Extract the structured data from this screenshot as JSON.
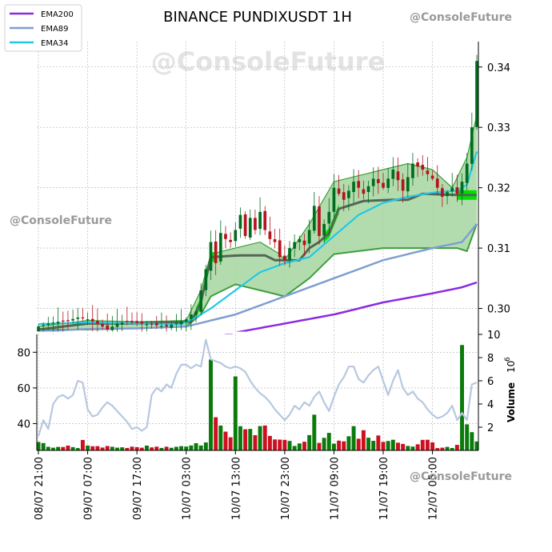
{
  "watermarks": {
    "center": "@ConsoleFuture",
    "top_right": "@ConsoleFuture",
    "left": "@ConsoleFuture",
    "bottom_right": "@ConsoleFuture"
  },
  "colors": {
    "up": "#006e1e",
    "down": "#b4141e",
    "ema200": "#8a2be2",
    "ema89": "#7f9fd0",
    "ema34": "#22c8e5",
    "cloud_fill": "#a6d6a0",
    "cloud_edge": "#3d9e3d",
    "bright_green": "#00e000",
    "vol_up": "#0a7a0a",
    "vol_down": "#cc1020",
    "rsi_line": "#b8c8e0"
  },
  "chart_data": {
    "type": "candlestick",
    "title": "BINANCE PUNDIXUSDT 1H",
    "legend": {
      "placement": "top-left",
      "entries": [
        "EMA200",
        "EMA89",
        "EMA34"
      ]
    },
    "x_tick_labels": [
      "08/07 21:00",
      "09/07 07:00",
      "09/07 17:00",
      "10/07 03:00",
      "10/07 13:00",
      "10/07 23:00",
      "11/07 09:00",
      "11/07 19:00",
      "12/07 05:00"
    ],
    "x_tick_index": [
      0,
      10,
      20,
      30,
      40,
      50,
      60,
      70,
      80
    ],
    "num_bars": 90,
    "price_axis": {
      "ticks": [
        0.3,
        0.31,
        0.32,
        0.33,
        0.34
      ],
      "range": [
        0.2957,
        0.3458
      ],
      "side": "right",
      "grid": true
    },
    "volume_axis": {
      "label": "Volume",
      "exponent_label": "10",
      "exponent": "6",
      "ticks": [
        2,
        4,
        6,
        8,
        10
      ],
      "range": [
        0,
        10
      ],
      "side": "right"
    },
    "oscillator_axis": {
      "ticks": [
        40,
        60,
        80
      ],
      "range": [
        25,
        90
      ],
      "side": "left"
    },
    "price_anchors": {
      "close": [
        [
          0,
          0.297
        ],
        [
          2,
          0.2975
        ],
        [
          4,
          0.2978
        ],
        [
          6,
          0.298
        ],
        [
          8,
          0.2985
        ],
        [
          10,
          0.2982
        ],
        [
          12,
          0.2975
        ],
        [
          14,
          0.2965
        ],
        [
          16,
          0.2975
        ],
        [
          18,
          0.2978
        ],
        [
          20,
          0.2976
        ],
        [
          22,
          0.2974
        ],
        [
          24,
          0.2972
        ],
        [
          26,
          0.297
        ],
        [
          28,
          0.2976
        ],
        [
          30,
          0.2982
        ],
        [
          31,
          0.299
        ],
        [
          32,
          0.2995
        ],
        [
          33,
          0.303
        ],
        [
          34,
          0.3065
        ],
        [
          35,
          0.311
        ],
        [
          36,
          0.3075
        ],
        [
          37,
          0.3125
        ],
        [
          38,
          0.3115
        ],
        [
          39,
          0.311
        ],
        [
          40,
          0.313
        ],
        [
          41,
          0.3155
        ],
        [
          42,
          0.312
        ],
        [
          43,
          0.315
        ],
        [
          44,
          0.313
        ],
        [
          45,
          0.316
        ],
        [
          46,
          0.313
        ],
        [
          47,
          0.3115
        ],
        [
          48,
          0.311
        ],
        [
          49,
          0.3085
        ],
        [
          50,
          0.308
        ],
        [
          51,
          0.31
        ],
        [
          52,
          0.311
        ],
        [
          53,
          0.3115
        ],
        [
          54,
          0.3105
        ],
        [
          55,
          0.313
        ],
        [
          56,
          0.317
        ],
        [
          57,
          0.312
        ],
        [
          58,
          0.314
        ],
        [
          59,
          0.316
        ],
        [
          60,
          0.32
        ],
        [
          62,
          0.318
        ],
        [
          64,
          0.321
        ],
        [
          66,
          0.319
        ],
        [
          68,
          0.3215
        ],
        [
          70,
          0.32
        ],
        [
          72,
          0.323
        ],
        [
          74,
          0.3195
        ],
        [
          76,
          0.324
        ],
        [
          78,
          0.323
        ],
        [
          80,
          0.3215
        ],
        [
          82,
          0.3185
        ],
        [
          84,
          0.32
        ],
        [
          85,
          0.319
        ],
        [
          86,
          0.321
        ],
        [
          87,
          0.324
        ],
        [
          88,
          0.33
        ],
        [
          89,
          0.341
        ]
      ],
      "ema34": [
        [
          0,
          0.2974
        ],
        [
          10,
          0.2977
        ],
        [
          20,
          0.2975
        ],
        [
          29,
          0.2974
        ],
        [
          32,
          0.2985
        ],
        [
          35,
          0.3
        ],
        [
          40,
          0.303
        ],
        [
          45,
          0.306
        ],
        [
          50,
          0.3075
        ],
        [
          55,
          0.3085
        ],
        [
          60,
          0.312
        ],
        [
          65,
          0.3155
        ],
        [
          70,
          0.3175
        ],
        [
          75,
          0.3185
        ],
        [
          80,
          0.3192
        ],
        [
          85,
          0.3195
        ],
        [
          87,
          0.3205
        ],
        [
          89,
          0.326
        ]
      ],
      "ema89": [
        [
          0,
          0.2962
        ],
        [
          10,
          0.2966
        ],
        [
          20,
          0.2967
        ],
        [
          30,
          0.297
        ],
        [
          40,
          0.299
        ],
        [
          50,
          0.302
        ],
        [
          60,
          0.305
        ],
        [
          70,
          0.308
        ],
        [
          80,
          0.31
        ],
        [
          86,
          0.311
        ],
        [
          89,
          0.314
        ]
      ],
      "ema200": [
        [
          35,
          0.295
        ],
        [
          40,
          0.296
        ],
        [
          50,
          0.2975
        ],
        [
          60,
          0.299
        ],
        [
          70,
          0.301
        ],
        [
          80,
          0.3025
        ],
        [
          86,
          0.3035
        ],
        [
          89,
          0.3043
        ]
      ],
      "cloud_upper": [
        [
          0,
          0.297
        ],
        [
          10,
          0.298
        ],
        [
          20,
          0.2978
        ],
        [
          30,
          0.298
        ],
        [
          33,
          0.303
        ],
        [
          35,
          0.309
        ],
        [
          40,
          0.31
        ],
        [
          45,
          0.311
        ],
        [
          49,
          0.309
        ],
        [
          50,
          0.308
        ],
        [
          55,
          0.314
        ],
        [
          60,
          0.321
        ],
        [
          65,
          0.322
        ],
        [
          70,
          0.323
        ],
        [
          75,
          0.324
        ],
        [
          80,
          0.323
        ],
        [
          84,
          0.32
        ],
        [
          87,
          0.325
        ],
        [
          89,
          0.332
        ]
      ],
      "cloud_lower": [
        [
          0,
          0.2965
        ],
        [
          10,
          0.2965
        ],
        [
          20,
          0.2967
        ],
        [
          30,
          0.297
        ],
        [
          33,
          0.299
        ],
        [
          35,
          0.302
        ],
        [
          40,
          0.304
        ],
        [
          45,
          0.303
        ],
        [
          50,
          0.302
        ],
        [
          55,
          0.305
        ],
        [
          60,
          0.309
        ],
        [
          65,
          0.3095
        ],
        [
          70,
          0.31
        ],
        [
          75,
          0.31
        ],
        [
          80,
          0.31
        ],
        [
          85,
          0.31
        ],
        [
          87,
          0.3095
        ],
        [
          89,
          0.314
        ]
      ],
      "cloud_mid": [
        [
          0,
          0.2965
        ],
        [
          10,
          0.2975
        ],
        [
          20,
          0.2975
        ],
        [
          31,
          0.2978
        ],
        [
          33,
          0.301
        ],
        [
          35,
          0.3085
        ],
        [
          41,
          0.3088
        ],
        [
          46,
          0.3088
        ],
        [
          48,
          0.308
        ],
        [
          53,
          0.308
        ],
        [
          55,
          0.31
        ],
        [
          57,
          0.311
        ],
        [
          59,
          0.3125
        ],
        [
          61,
          0.3165
        ],
        [
          66,
          0.3178
        ],
        [
          72,
          0.318
        ],
        [
          75,
          0.318
        ],
        [
          78,
          0.319
        ],
        [
          85,
          0.3188
        ],
        [
          89,
          0.3188
        ]
      ]
    },
    "volume_anchors": [
      [
        0,
        0.8
      ],
      [
        2,
        0.3
      ],
      [
        4,
        0.4
      ],
      [
        6,
        0.3
      ],
      [
        8,
        0.3
      ],
      [
        9,
        0.9
      ],
      [
        10,
        0.4
      ],
      [
        11,
        0.3
      ],
      [
        14,
        0.4
      ],
      [
        16,
        0.3
      ],
      [
        20,
        0.2
      ],
      [
        22,
        0.3
      ],
      [
        26,
        0.2
      ],
      [
        28,
        0.3
      ],
      [
        30,
        0.4
      ],
      [
        34,
        0.6
      ],
      [
        35,
        7.8
      ],
      [
        36,
        2.8
      ],
      [
        37,
        2.2
      ],
      [
        38,
        1.6
      ],
      [
        39,
        1.2
      ],
      [
        40,
        6.3
      ],
      [
        41,
        2.1
      ],
      [
        42,
        1.8
      ],
      [
        43,
        1.9
      ],
      [
        44,
        1.4
      ],
      [
        45,
        2.0
      ],
      [
        46,
        2.1
      ],
      [
        47,
        1.2
      ],
      [
        48,
        1.0
      ],
      [
        50,
        1.0
      ],
      [
        52,
        0.5
      ],
      [
        54,
        0.8
      ],
      [
        55,
        1.3
      ],
      [
        56,
        3.2
      ],
      [
        57,
        0.6
      ],
      [
        58,
        1.0
      ],
      [
        59,
        1.4
      ],
      [
        60,
        0.6
      ],
      [
        62,
        0.9
      ],
      [
        63,
        1.2
      ],
      [
        64,
        2.0
      ],
      [
        65,
        1.0
      ],
      [
        66,
        1.8
      ],
      [
        67,
        1.0
      ],
      [
        68,
        0.9
      ],
      [
        69,
        1.2
      ],
      [
        70,
        0.7
      ],
      [
        71,
        0.9
      ],
      [
        72,
        0.9
      ],
      [
        73,
        0.6
      ],
      [
        74,
        0.5
      ],
      [
        76,
        0.4
      ],
      [
        77,
        0.6
      ],
      [
        78,
        0.9
      ],
      [
        79,
        1.0
      ],
      [
        80,
        0.6
      ],
      [
        81,
        0.3
      ],
      [
        84,
        0.3
      ],
      [
        85,
        0.4
      ],
      [
        86,
        9.0
      ],
      [
        87,
        2.3
      ],
      [
        88,
        1.5
      ],
      [
        89,
        0.8
      ]
    ],
    "oscillator_anchors": [
      [
        0,
        33
      ],
      [
        1,
        42
      ],
      [
        2,
        37
      ],
      [
        3,
        51
      ],
      [
        4,
        55
      ],
      [
        5,
        56
      ],
      [
        6,
        54
      ],
      [
        7,
        56
      ],
      [
        8,
        64
      ],
      [
        9,
        63
      ],
      [
        10,
        48
      ],
      [
        11,
        44
      ],
      [
        12,
        45
      ],
      [
        13,
        49
      ],
      [
        14,
        52
      ],
      [
        15,
        50
      ],
      [
        16,
        47
      ],
      [
        17,
        44
      ],
      [
        18,
        41
      ],
      [
        19,
        37
      ],
      [
        20,
        38
      ],
      [
        21,
        36
      ],
      [
        22,
        38
      ],
      [
        23,
        56
      ],
      [
        24,
        60
      ],
      [
        25,
        58
      ],
      [
        26,
        62
      ],
      [
        27,
        60
      ],
      [
        28,
        68
      ],
      [
        29,
        73
      ],
      [
        30,
        73
      ],
      [
        31,
        71
      ],
      [
        32,
        73
      ],
      [
        33,
        72
      ],
      [
        34,
        87
      ],
      [
        35,
        76
      ],
      [
        36,
        75
      ],
      [
        37,
        74
      ],
      [
        38,
        72
      ],
      [
        39,
        71
      ],
      [
        40,
        72
      ],
      [
        41,
        71
      ],
      [
        42,
        69
      ],
      [
        43,
        64
      ],
      [
        44,
        60
      ],
      [
        45,
        57
      ],
      [
        46,
        55
      ],
      [
        47,
        52
      ],
      [
        48,
        48
      ],
      [
        49,
        45
      ],
      [
        50,
        42
      ],
      [
        51,
        45
      ],
      [
        52,
        50
      ],
      [
        53,
        48
      ],
      [
        54,
        52
      ],
      [
        55,
        50
      ],
      [
        56,
        55
      ],
      [
        57,
        58
      ],
      [
        58,
        52
      ],
      [
        59,
        47
      ],
      [
        60,
        55
      ],
      [
        61,
        62
      ],
      [
        62,
        66
      ],
      [
        63,
        72
      ],
      [
        64,
        72
      ],
      [
        65,
        65
      ],
      [
        66,
        63
      ],
      [
        67,
        67
      ],
      [
        68,
        70
      ],
      [
        69,
        72
      ],
      [
        70,
        64
      ],
      [
        71,
        56
      ],
      [
        72,
        64
      ],
      [
        73,
        70
      ],
      [
        74,
        60
      ],
      [
        75,
        56
      ],
      [
        76,
        58
      ],
      [
        77,
        54
      ],
      [
        78,
        52
      ],
      [
        79,
        48
      ],
      [
        80,
        45
      ],
      [
        81,
        43
      ],
      [
        82,
        44
      ],
      [
        83,
        46
      ],
      [
        84,
        50
      ],
      [
        85,
        42
      ],
      [
        86,
        46
      ],
      [
        87,
        42
      ],
      [
        88,
        62
      ],
      [
        89,
        63
      ]
    ]
  }
}
